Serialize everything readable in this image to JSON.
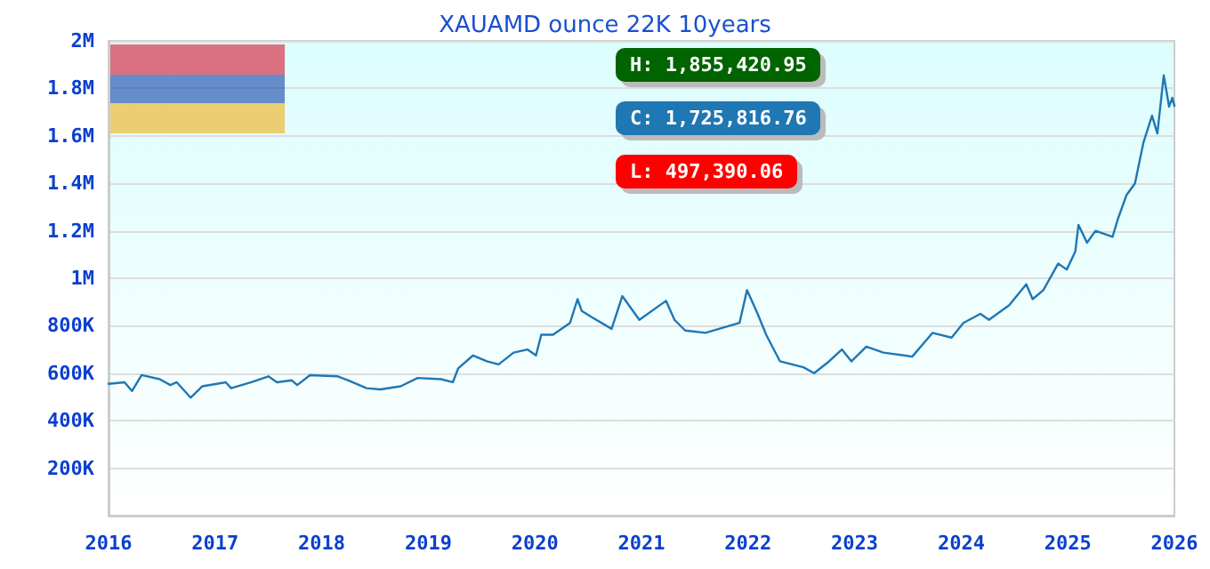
{
  "chart_data": {
    "type": "line",
    "title": "XAUAMD ounce 22K 10years",
    "annotations": [
      "H: 1,855,420.95",
      "C: 1,725,816.76",
      "L: 497,390.06"
    ],
    "x": [
      2016.0,
      2016.15,
      2016.22,
      2016.31,
      2016.48,
      2016.58,
      2016.64,
      2016.77,
      2016.88,
      2017.1,
      2017.15,
      2017.34,
      2017.5,
      2017.58,
      2017.72,
      2017.77,
      2017.89,
      2018.15,
      2018.25,
      2018.42,
      2018.55,
      2018.74,
      2018.9,
      2019.12,
      2019.23,
      2019.28,
      2019.42,
      2019.55,
      2019.66,
      2019.8,
      2019.93,
      2020.01,
      2020.06,
      2020.17,
      2020.33,
      2020.4,
      2020.44,
      2020.53,
      2020.72,
      2020.82,
      2020.98,
      2021.23,
      2021.31,
      2021.41,
      2021.6,
      2021.92,
      2021.99,
      2022.09,
      2022.17,
      2022.3,
      2022.52,
      2022.62,
      2022.76,
      2022.88,
      2022.97,
      2023.11,
      2023.27,
      2023.54,
      2023.73,
      2023.91,
      2024.02,
      2024.18,
      2024.26,
      2024.45,
      2024.61,
      2024.67,
      2024.77,
      2024.91,
      2024.99,
      2025.07,
      2025.1,
      2025.18,
      2025.26,
      2025.42,
      2025.47,
      2025.55,
      2025.63,
      2025.71,
      2025.79,
      2025.84,
      2025.9,
      2025.95,
      2025.98,
      2026.0
    ],
    "series": [
      {
        "color": "#1f77b4",
        "values": [
          555000,
          562000,
          525000,
          592000,
          575000,
          550000,
          562000,
          497000,
          545000,
          562000,
          537000,
          562000,
          587000,
          562000,
          570000,
          550000,
          592000,
          587000,
          570000,
          537000,
          532000,
          545000,
          580000,
          575000,
          562000,
          620000,
          675000,
          650000,
          637000,
          687000,
          700000,
          675000,
          762000,
          762000,
          812000,
          912000,
          862000,
          837000,
          787000,
          925000,
          825000,
          905000,
          825000,
          780000,
          770000,
          812000,
          950000,
          850000,
          762000,
          650000,
          625000,
          600000,
          650000,
          700000,
          650000,
          712000,
          687000,
          670000,
          770000,
          750000,
          812000,
          850000,
          825000,
          887000,
          975000,
          912000,
          950000,
          1062000,
          1037000,
          1112000,
          1225000,
          1150000,
          1200000,
          1175000,
          1250000,
          1350000,
          1400000,
          1573000,
          1685000,
          1610000,
          1855000,
          1723000,
          1760000,
          1726000
        ]
      }
    ],
    "xlim": [
      2016,
      2026
    ],
    "xticks": [
      2016,
      2017,
      2018,
      2019,
      2020,
      2021,
      2022,
      2023,
      2024,
      2025,
      2026
    ],
    "ylim": [
      0,
      2000000
    ],
    "yticks": [
      {
        "value": 0,
        "label": null
      },
      {
        "value": 200000,
        "label": "200K"
      },
      {
        "value": 400000,
        "label": "400K"
      },
      {
        "value": 600000,
        "label": "600K"
      },
      {
        "value": 800000,
        "label": "800K"
      },
      {
        "value": 1000000,
        "label": "1M"
      },
      {
        "value": 1200000,
        "label": "1.2M"
      },
      {
        "value": 1400000,
        "label": "1.4M"
      },
      {
        "value": 1600000,
        "label": "1.6M"
      },
      {
        "value": 1800000,
        "label": "1.8M"
      },
      {
        "value": 2000000,
        "label": "2M"
      }
    ],
    "grid": "y",
    "marker": "none",
    "line_style": "solid"
  }
}
